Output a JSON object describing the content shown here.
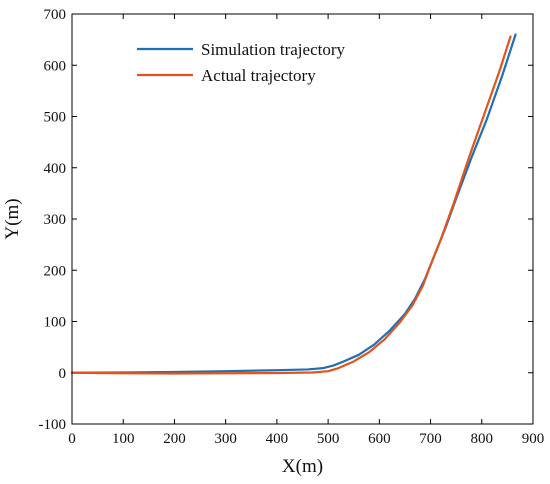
{
  "chart_data": {
    "type": "line",
    "title": "",
    "xlabel": "X(m)",
    "ylabel": "Y(m)",
    "xlim": [
      0,
      900
    ],
    "ylim": [
      -100,
      700
    ],
    "x_ticks": [
      0,
      100,
      200,
      300,
      400,
      500,
      600,
      700,
      800,
      900
    ],
    "y_ticks": [
      -100,
      0,
      100,
      200,
      300,
      400,
      500,
      600,
      700
    ],
    "x_tick_labels": [
      "0",
      "100",
      "200",
      "300",
      "400",
      "500",
      "600",
      "700",
      "800",
      "900"
    ],
    "y_tick_labels": [
      "-100",
      "0",
      "100",
      "200",
      "300",
      "400",
      "500",
      "600",
      "700"
    ],
    "grid": false,
    "legend_position": "top-left",
    "series": [
      {
        "name": "Simulation trajectory",
        "color": "#1f6fb5",
        "points": [
          [
            0,
            0
          ],
          [
            100,
            0.5
          ],
          [
            200,
            1.5
          ],
          [
            300,
            3
          ],
          [
            400,
            5
          ],
          [
            460,
            6.5
          ],
          [
            490,
            9
          ],
          [
            510,
            14
          ],
          [
            530,
            22
          ],
          [
            560,
            35
          ],
          [
            590,
            55
          ],
          [
            620,
            82
          ],
          [
            650,
            115
          ],
          [
            670,
            145
          ],
          [
            690,
            185
          ],
          [
            710,
            235
          ],
          [
            730,
            285
          ],
          [
            750,
            340
          ],
          [
            780,
            420
          ],
          [
            810,
            495
          ],
          [
            840,
            580
          ],
          [
            866,
            660
          ]
        ]
      },
      {
        "name": "Actual trajectory",
        "color": "#e2541b",
        "points": [
          [
            0,
            0
          ],
          [
            100,
            -1
          ],
          [
            200,
            -1.5
          ],
          [
            300,
            -1
          ],
          [
            400,
            -0.5
          ],
          [
            470,
            0.5
          ],
          [
            500,
            3
          ],
          [
            520,
            9
          ],
          [
            550,
            22
          ],
          [
            580,
            40
          ],
          [
            610,
            65
          ],
          [
            640,
            98
          ],
          [
            665,
            132
          ],
          [
            685,
            170
          ],
          [
            700,
            210
          ],
          [
            720,
            260
          ],
          [
            745,
            330
          ],
          [
            775,
            420
          ],
          [
            805,
            505
          ],
          [
            835,
            590
          ],
          [
            856,
            656
          ]
        ]
      }
    ]
  }
}
